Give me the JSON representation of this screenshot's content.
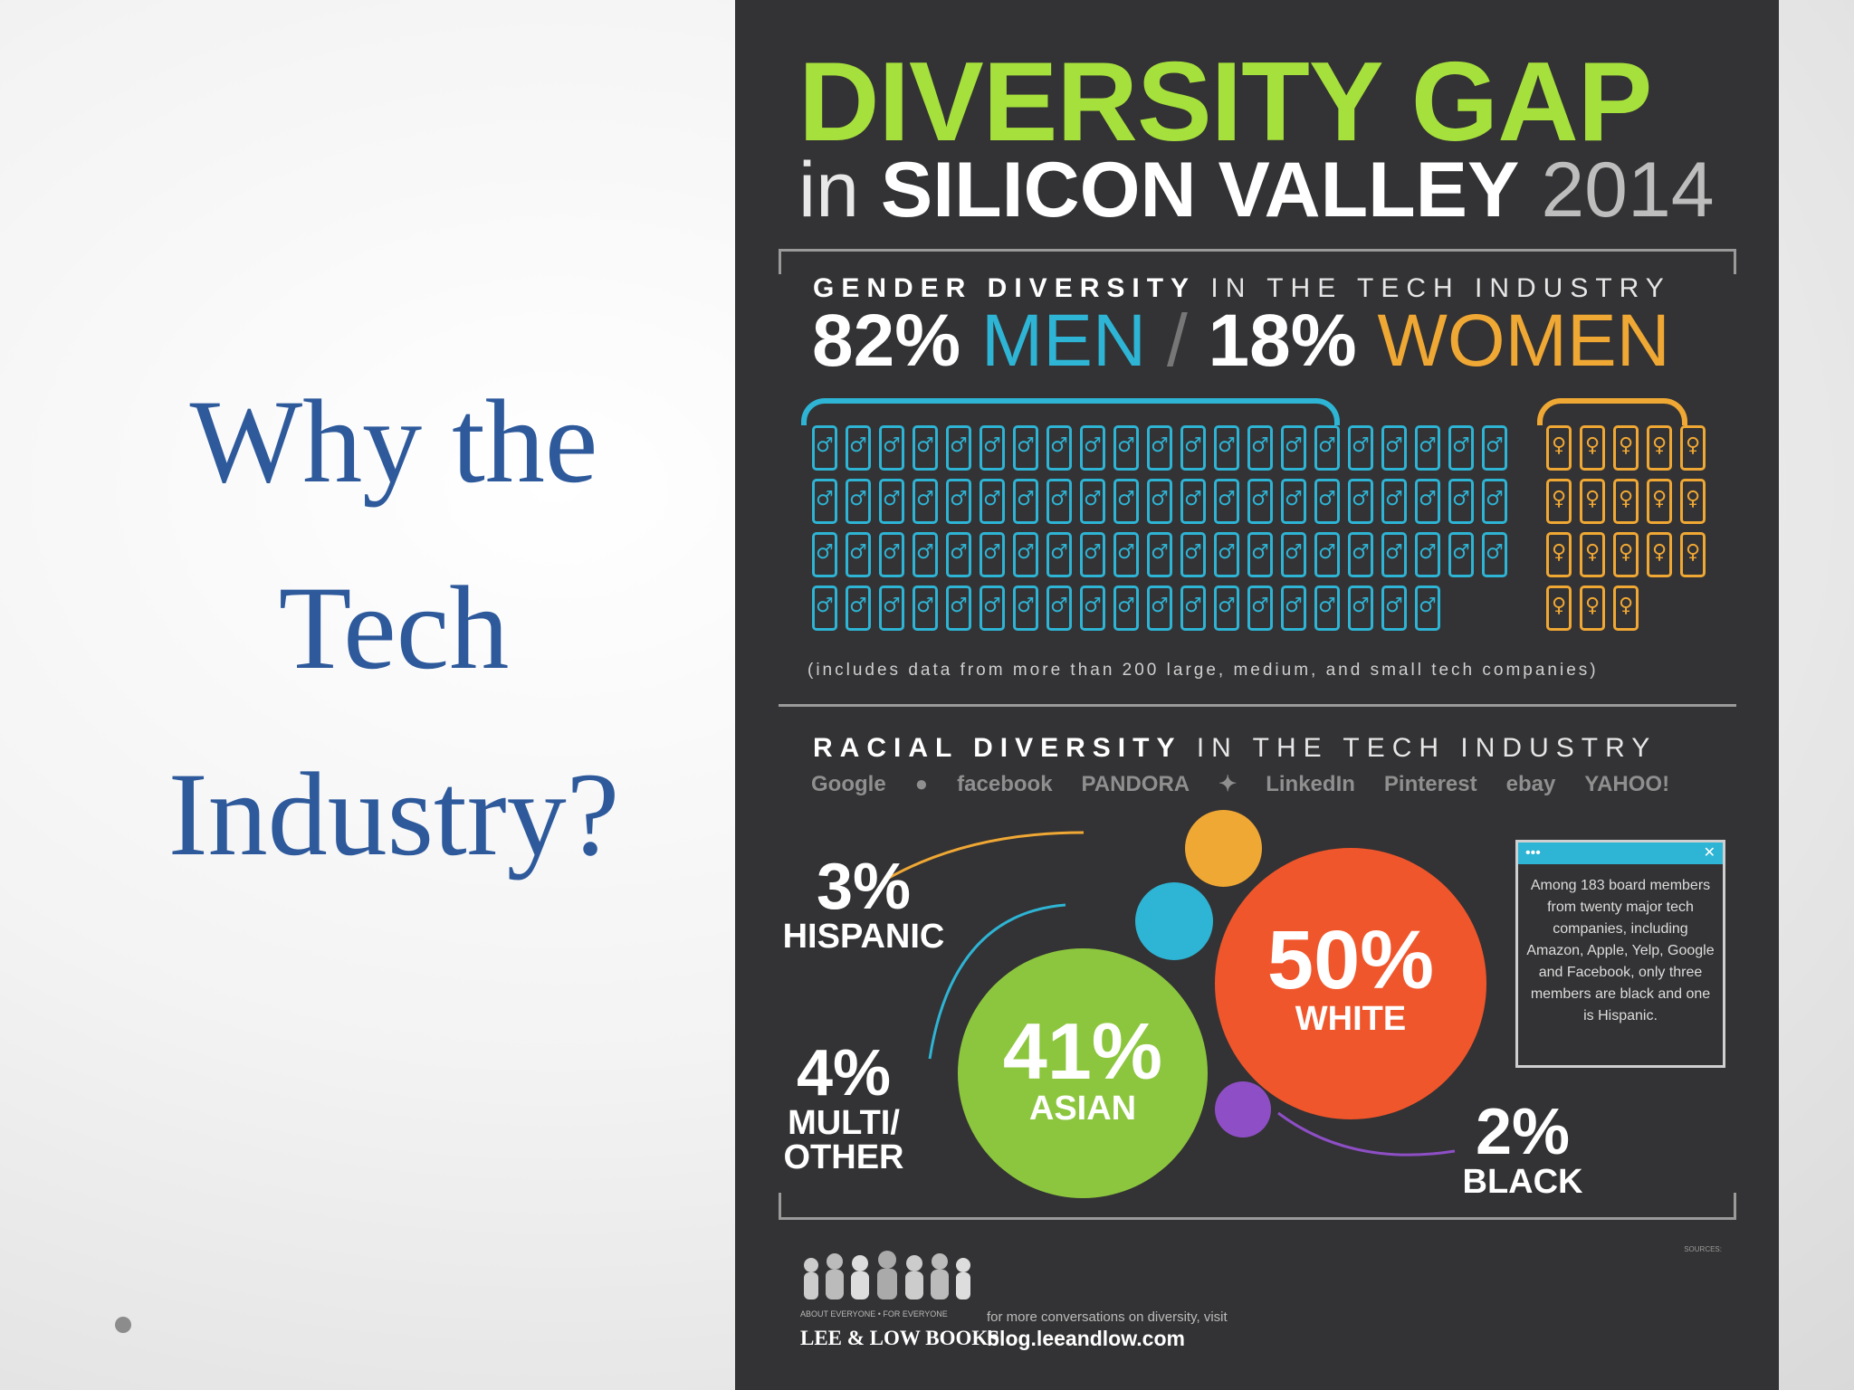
{
  "slide": {
    "title_lines": [
      "Why the",
      "Tech",
      "Industry?"
    ]
  },
  "poster": {
    "title": "DIVERSITY GAP",
    "subtitle_in": "in",
    "subtitle_main": "SILICON VALLEY",
    "subtitle_year": "2014",
    "gender": {
      "heading_bold": "GENDER DIVERSITY",
      "heading_rest": "IN THE TECH INDUSTRY",
      "men_pct": "82%",
      "men_label": "MEN",
      "slash": "/",
      "women_pct": "18%",
      "women_label": "WOMEN",
      "men_icon": "♂",
      "women_icon": "♀",
      "men_share": 82,
      "women_share": 18,
      "note": "(includes data from more than 200 large, medium, and small tech companies)"
    },
    "race": {
      "heading_bold": "RACIAL DIVERSITY",
      "heading_rest": "IN THE TECH INDUSTRY",
      "logos": [
        "Google",
        "",
        "facebook",
        "PANDORA",
        "",
        "LinkedIn",
        "Pinterest",
        "ebay",
        "YAHOO!"
      ],
      "hispanic_pct": "3%",
      "hispanic_label": "HISPANIC",
      "multi_pct": "4%",
      "multi_label_1": "MULTI/",
      "multi_label_2": "OTHER",
      "asian_pct": "41%",
      "asian_label": "ASIAN",
      "white_pct": "50%",
      "white_label": "WHITE",
      "black_pct": "2%",
      "black_label": "BLACK",
      "popup_dots": "•••",
      "popup_close": "✕",
      "popup_text": "Among 183 board members from twenty major tech companies, including Amazon, Apple, Yelp, Google and Facebook, only three members are black and one is Hispanic."
    },
    "footer": {
      "tagline": "ABOUT EVERYONE • FOR EVERYONE",
      "brand": "LEE & LOW BOOKS",
      "more_text": "for more conversations on diversity, visit",
      "blog": "blog.leeandlow.com",
      "sources_label": "SOURCES:"
    }
  },
  "colors": {
    "title_blue": "#2e5a9c",
    "poster_bg": "#333234",
    "green": "#a6e03c",
    "cyan": "#2eb4d4",
    "orange": "#f0a834",
    "red": "#f0562b",
    "asian_green": "#8cc63e",
    "purple": "#8e4fc6"
  }
}
